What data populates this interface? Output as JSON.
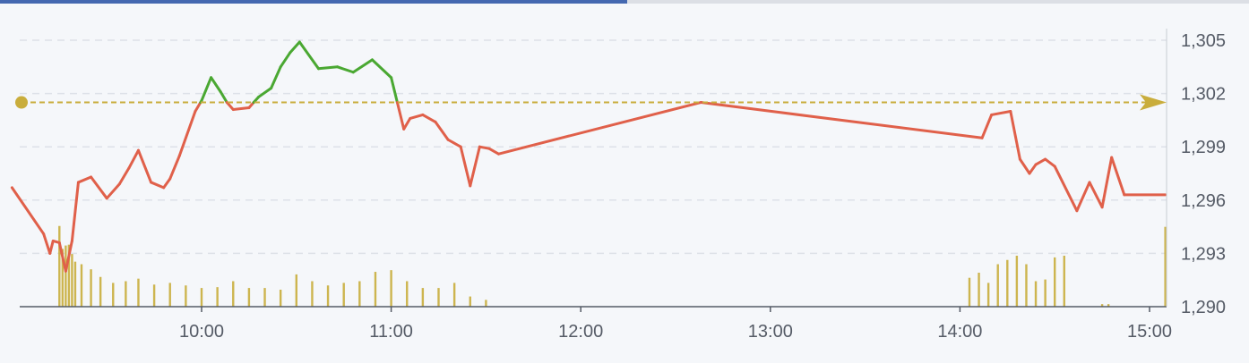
{
  "chart_data": {
    "type": "line",
    "title": "",
    "xlabel": "",
    "ylabel": "",
    "ylim": [
      1290,
      1306
    ],
    "yticks": [
      "1,290",
      "1,293",
      "1,296",
      "1,299",
      "1,302",
      "1,305"
    ],
    "xticks": [
      "10:00",
      "11:00",
      "12:00",
      "13:00",
      "14:00",
      "15:00"
    ],
    "reference_price": 1301.5,
    "colors": {
      "above_reference": "#4aa832",
      "below_reference": "#e0604a",
      "reference_line": "#c9ad3c",
      "volume_bar": "#c9ad3c",
      "grid": "#dde1e8",
      "axis": "#555b66",
      "progress_bar": "#4468b0"
    },
    "price_series": {
      "x": [
        "09:00",
        "09:10",
        "09:12",
        "09:13",
        "09:15",
        "09:17",
        "09:19",
        "09:21",
        "09:25",
        "09:30",
        "09:34",
        "09:37",
        "09:40",
        "09:44",
        "09:48",
        "09:50",
        "09:53",
        "09:58",
        "10:00",
        "10:03",
        "10:06",
        "10:08",
        "10:10",
        "10:15",
        "10:18",
        "10:22",
        "10:25",
        "10:28",
        "10:31",
        "10:37",
        "10:43",
        "10:48",
        "10:54",
        "11:00",
        "11:04",
        "11:06",
        "11:10",
        "11:14",
        "11:18",
        "11:22",
        "11:25",
        "11:28",
        "11:31",
        "11:34",
        "12:38",
        "14:07",
        "14:10",
        "14:16",
        "14:19",
        "14:22",
        "14:24",
        "14:27",
        "14:30",
        "14:37",
        "14:41",
        "14:45",
        "14:48",
        "14:52",
        "15:05"
      ],
      "values": [
        1296.7,
        1294.1,
        1293.0,
        1293.7,
        1293.6,
        1292.0,
        1293.7,
        1297.0,
        1297.3,
        1296.1,
        1296.9,
        1297.8,
        1298.8,
        1297.0,
        1296.7,
        1297.2,
        1298.5,
        1301.0,
        1301.6,
        1302.9,
        1302.1,
        1301.5,
        1301.1,
        1301.2,
        1301.8,
        1302.3,
        1303.5,
        1304.3,
        1304.9,
        1303.4,
        1303.5,
        1303.2,
        1303.9,
        1302.9,
        1300.0,
        1300.6,
        1300.8,
        1300.4,
        1299.4,
        1299.0,
        1296.8,
        1299.0,
        1298.9,
        1298.6,
        1301.5,
        1299.5,
        1300.8,
        1301.0,
        1298.3,
        1297.5,
        1298.0,
        1298.3,
        1297.9,
        1295.4,
        1297.0,
        1295.6,
        1298.4,
        1296.3,
        1296.3
      ]
    },
    "volume_series": {
      "note": "relative volume (0-1) per minute bar",
      "x": [
        "09:15",
        "09:16",
        "09:17",
        "09:18",
        "09:19",
        "09:20",
        "09:22",
        "09:25",
        "09:28",
        "09:32",
        "09:36",
        "09:40",
        "09:45",
        "09:50",
        "09:55",
        "10:00",
        "10:05",
        "10:10",
        "10:15",
        "10:20",
        "10:25",
        "10:30",
        "10:35",
        "10:40",
        "10:45",
        "10:50",
        "10:55",
        "11:00",
        "11:05",
        "11:10",
        "11:15",
        "11:20",
        "11:25",
        "11:30",
        "14:03",
        "14:06",
        "14:09",
        "14:12",
        "14:15",
        "14:18",
        "14:21",
        "14:24",
        "14:27",
        "14:30",
        "14:33",
        "14:45",
        "14:47",
        "15:05"
      ],
      "values": [
        0.95,
        0.68,
        0.72,
        0.73,
        0.62,
        0.53,
        0.5,
        0.44,
        0.35,
        0.28,
        0.3,
        0.33,
        0.26,
        0.28,
        0.25,
        0.22,
        0.23,
        0.3,
        0.22,
        0.22,
        0.2,
        0.38,
        0.3,
        0.25,
        0.28,
        0.3,
        0.41,
        0.43,
        0.3,
        0.22,
        0.22,
        0.28,
        0.12,
        0.08,
        0.34,
        0.4,
        0.28,
        0.5,
        0.55,
        0.6,
        0.5,
        0.3,
        0.32,
        0.58,
        0.6,
        0.03,
        0.03,
        0.94
      ]
    }
  }
}
